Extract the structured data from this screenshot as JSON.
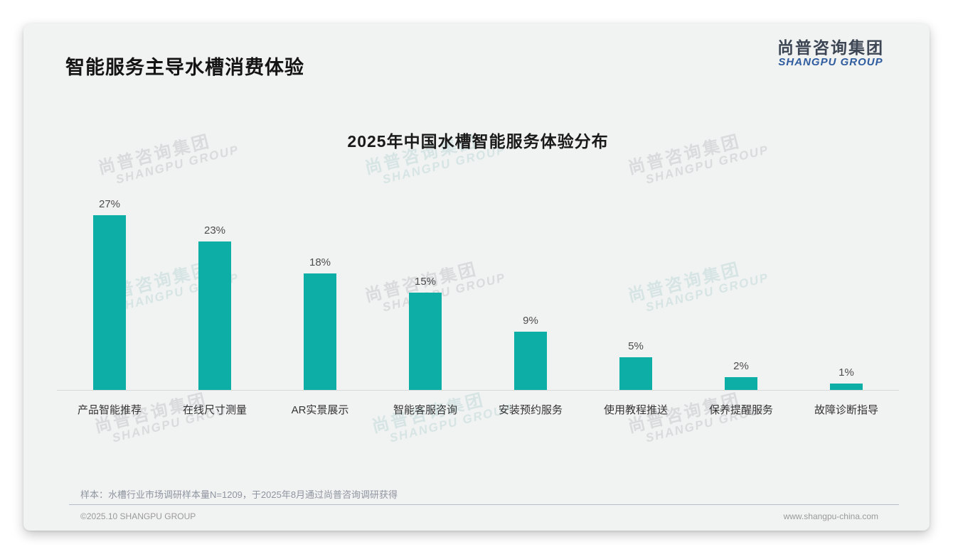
{
  "page": {
    "title": "智能服务主导水槽消费体验",
    "logo": {
      "cn": "尚普咨询集团",
      "en": "SHANGPU GROUP"
    },
    "watermark": {
      "line1": "尚普咨询集团",
      "line2": "SHANGPU GROUP"
    },
    "footnote": "样本：水槽行业市场调研样本量N=1209，于2025年8月通过尚普咨询调研获得",
    "footer": {
      "left": "©2025.10 SHANGPU GROUP",
      "right": "www.shangpu-china.com"
    }
  },
  "colors": {
    "accent_teal": "#0CAEA5",
    "logo_blue": "#2E5C9E",
    "logo_dark": "#3D4654"
  },
  "chart_data": {
    "type": "bar",
    "title": "2025年中国水槽智能服务体验分布",
    "categories": [
      "产品智能推荐",
      "在线尺寸测量",
      "AR实景展示",
      "智能客服咨询",
      "安装预约服务",
      "使用教程推送",
      "保养提醒服务",
      "故障诊断指导"
    ],
    "values": [
      27,
      23,
      18,
      15,
      9,
      5,
      2,
      1
    ],
    "unit": "%",
    "bar_color": "#0CAEA5",
    "xlabel": "",
    "ylabel": "",
    "ylim": [
      0,
      30
    ],
    "grid": false,
    "legend": "none",
    "value_labels_shown": true
  }
}
